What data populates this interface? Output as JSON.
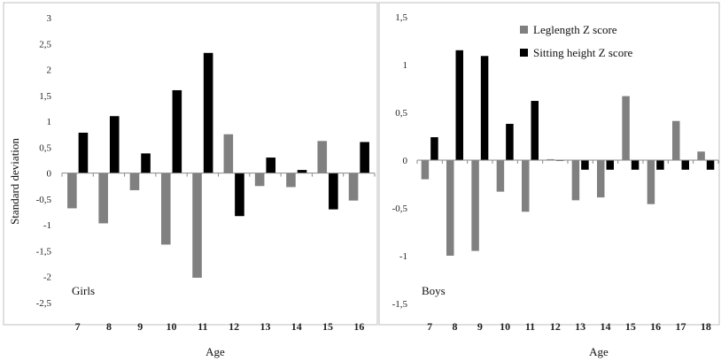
{
  "chart_data": [
    {
      "type": "bar",
      "panel_label": "Girls",
      "xlabel": "Age",
      "ylabel": "Standard deviation",
      "categories": [
        "7",
        "8",
        "9",
        "10",
        "11",
        "12",
        "13",
        "14",
        "15",
        "16"
      ],
      "ylim": [
        -2.5,
        3
      ],
      "yticks": [
        "-2,5",
        "-2",
        "-1,5",
        "-1",
        "-0,5",
        "0",
        "0,5",
        "1",
        "1,5",
        "2",
        "2,5",
        "3"
      ],
      "series": [
        {
          "name": "Leglength Z score",
          "color": "#808080",
          "values": [
            -0.68,
            -0.97,
            -0.33,
            -1.38,
            -2.02,
            0.75,
            -0.25,
            -0.27,
            0.62,
            -0.53
          ]
        },
        {
          "name": "Sitting height Z score",
          "color": "#000000",
          "values": [
            0.78,
            1.1,
            0.38,
            1.6,
            2.32,
            -0.83,
            0.3,
            0.06,
            -0.7,
            0.6
          ]
        }
      ],
      "legend": "none",
      "grid": false
    },
    {
      "type": "bar",
      "panel_label": "Boys",
      "xlabel": "Age",
      "ylabel": "",
      "categories": [
        "7",
        "8",
        "9",
        "10",
        "11",
        "12",
        "13",
        "14",
        "15",
        "16",
        "17",
        "18"
      ],
      "ylim": [
        -1.5,
        1.5
      ],
      "yticks": [
        "-1,5",
        "-1",
        "-0,5",
        "0",
        "0,5",
        "1",
        "1,5"
      ],
      "series": [
        {
          "name": "Leglength Z score",
          "color": "#808080",
          "values": [
            -0.2,
            -1.0,
            -0.95,
            -0.33,
            -0.54,
            0.01,
            -0.42,
            -0.39,
            0.67,
            -0.46,
            0.41,
            0.09
          ]
        },
        {
          "name": "Sitting height Z score",
          "color": "#000000",
          "values": [
            0.24,
            1.15,
            1.09,
            0.38,
            0.62,
            0.0,
            -0.1,
            -0.1,
            -0.1,
            -0.1,
            -0.1,
            -0.1
          ]
        }
      ],
      "legend": "top-right",
      "grid": false
    }
  ]
}
